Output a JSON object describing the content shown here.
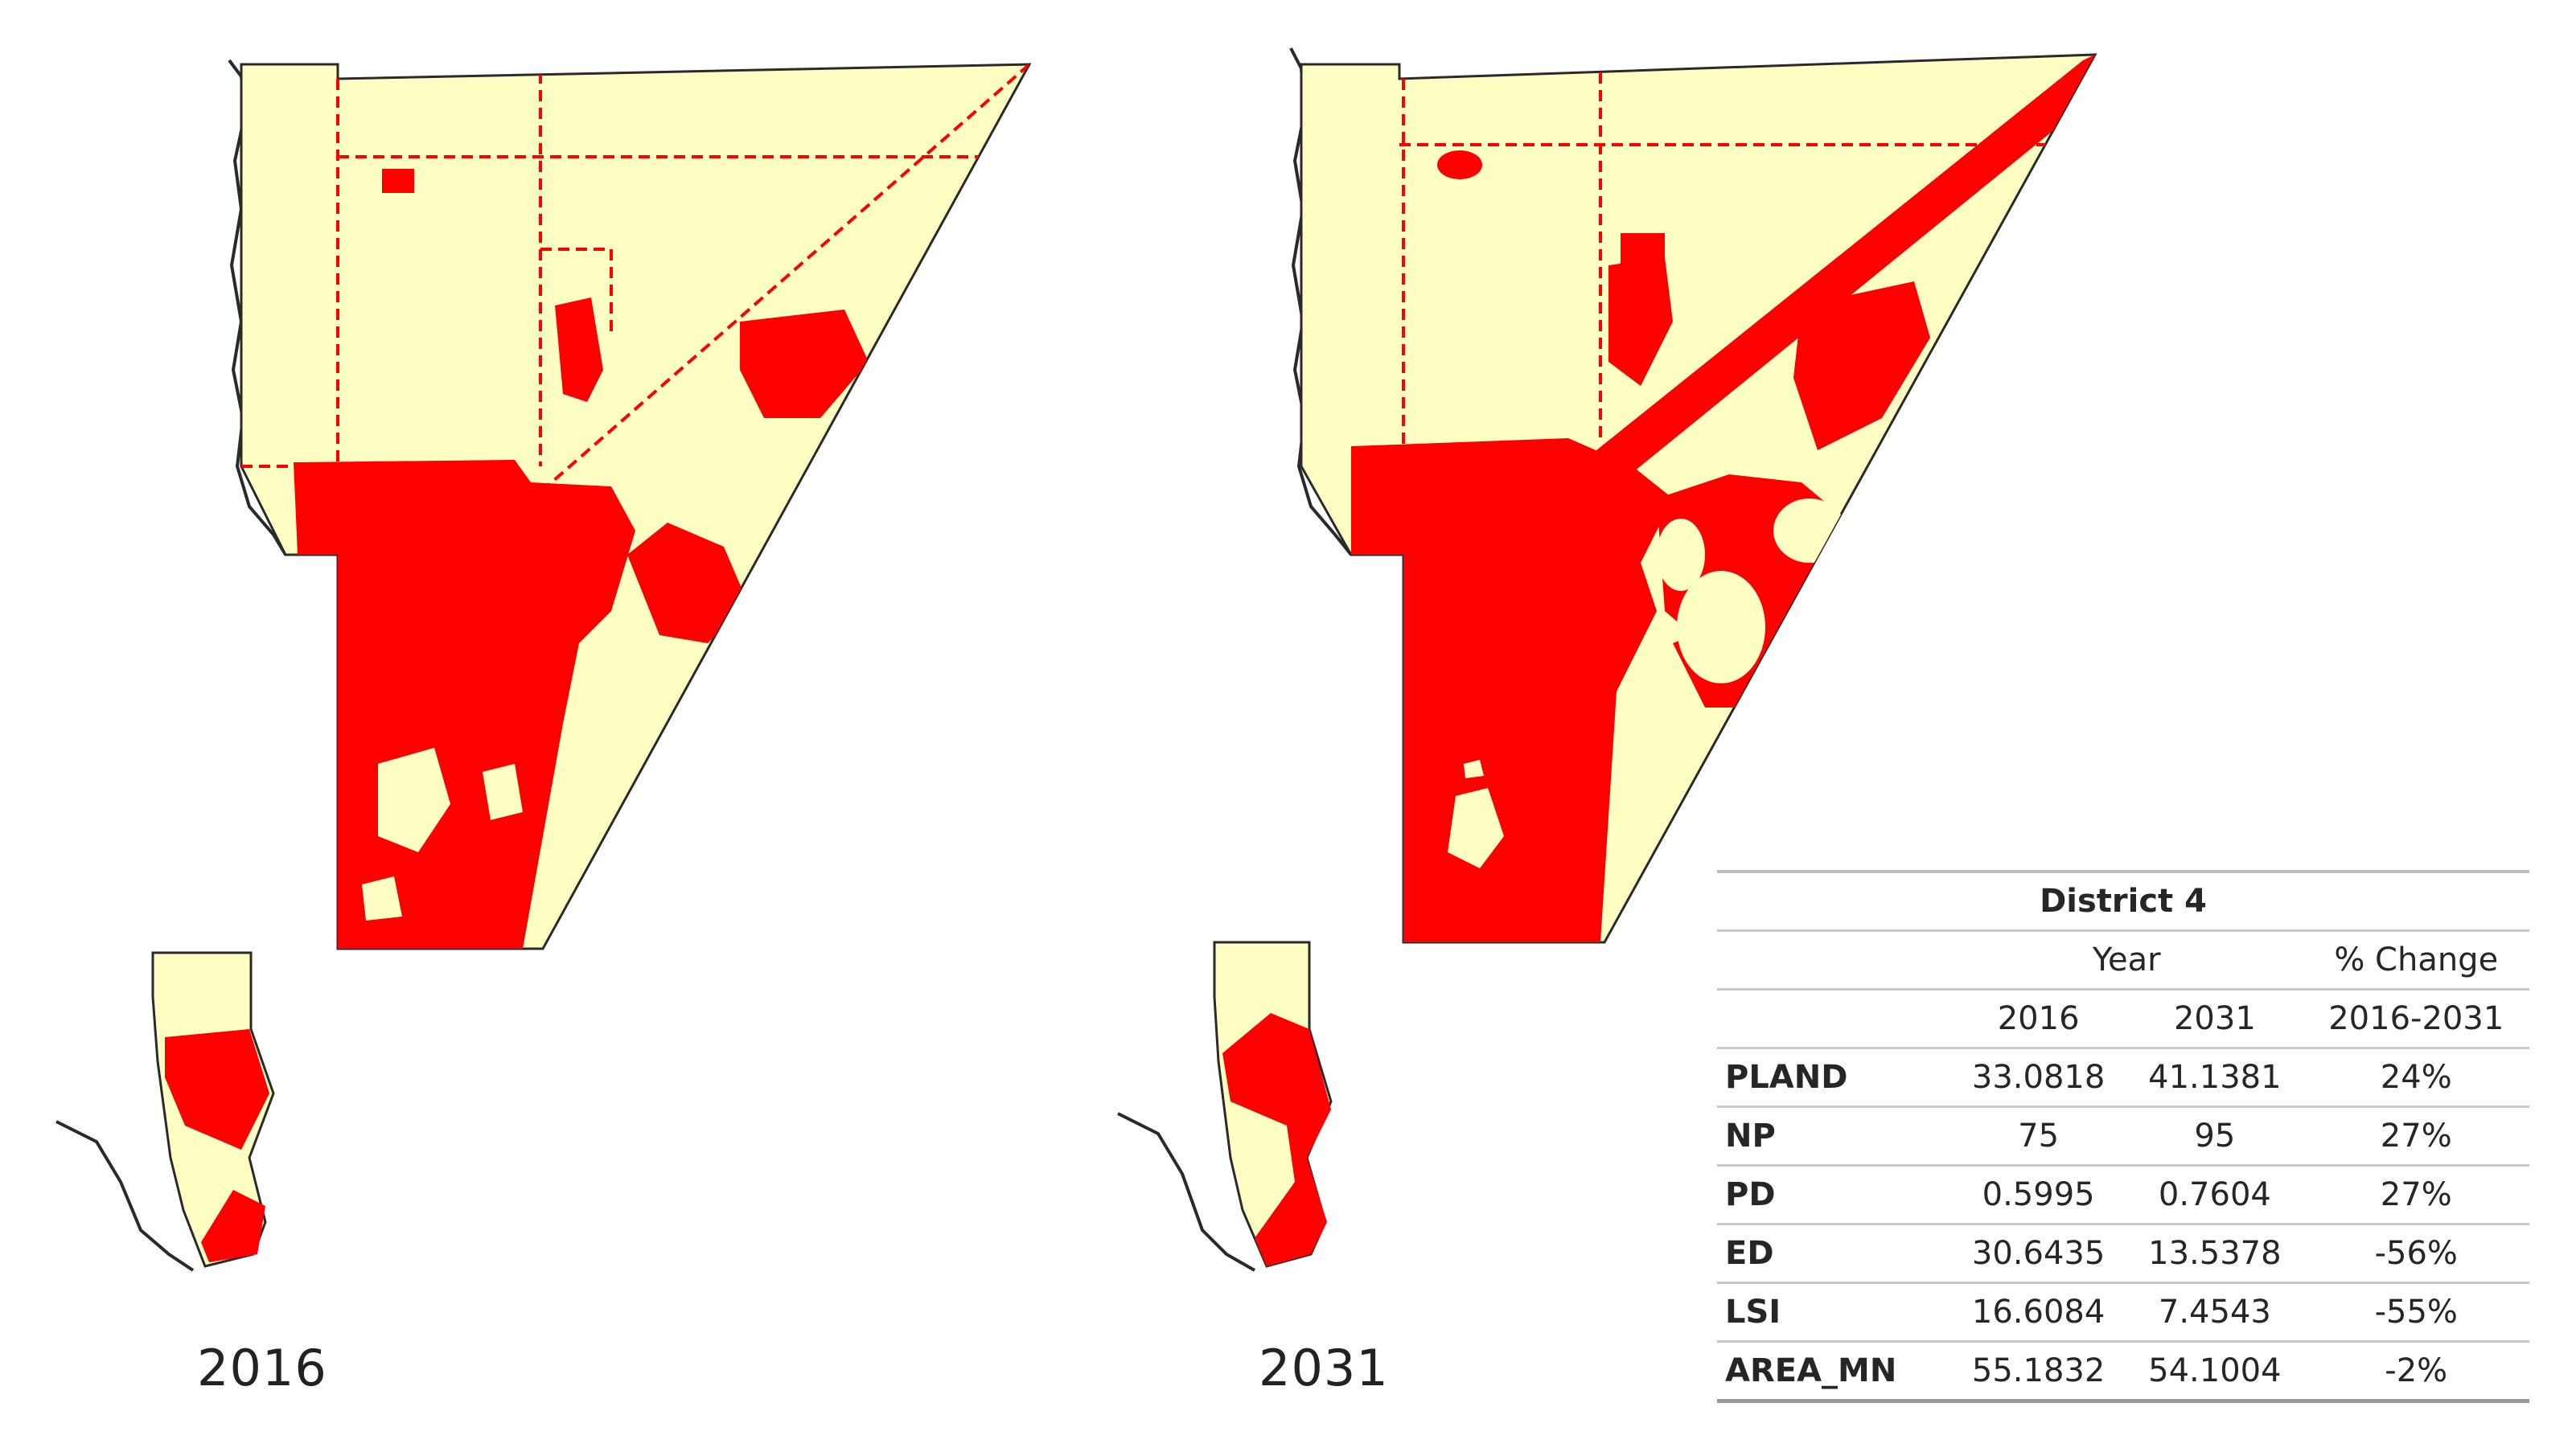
{
  "maps": [
    {
      "year_label": "2016"
    },
    {
      "year_label": "2031"
    }
  ],
  "colors": {
    "urban": "#ff0000",
    "non_urban": "#ffffc4",
    "outline": "#2a2a2a"
  },
  "table": {
    "title": "District 4",
    "header1": {
      "year": "Year",
      "change": "% Change"
    },
    "header2": {
      "y2016": "2016",
      "y2031": "2031",
      "range": "2016-2031"
    },
    "rows": [
      {
        "metric": "PLAND",
        "v2016": "33.0818",
        "v2031": "41.1381",
        "change": "24%"
      },
      {
        "metric": "NP",
        "v2016": "75",
        "v2031": "95",
        "change": "27%"
      },
      {
        "metric": "PD",
        "v2016": "0.5995",
        "v2031": "0.7604",
        "change": "27%"
      },
      {
        "metric": "ED",
        "v2016": "30.6435",
        "v2031": "13.5378",
        "change": "-56%"
      },
      {
        "metric": "LSI",
        "v2016": "16.6084",
        "v2031": "7.4543",
        "change": "-55%"
      },
      {
        "metric": "AREA_MN",
        "v2016": "55.1832",
        "v2031": "54.1004",
        "change": "-2%"
      }
    ]
  }
}
